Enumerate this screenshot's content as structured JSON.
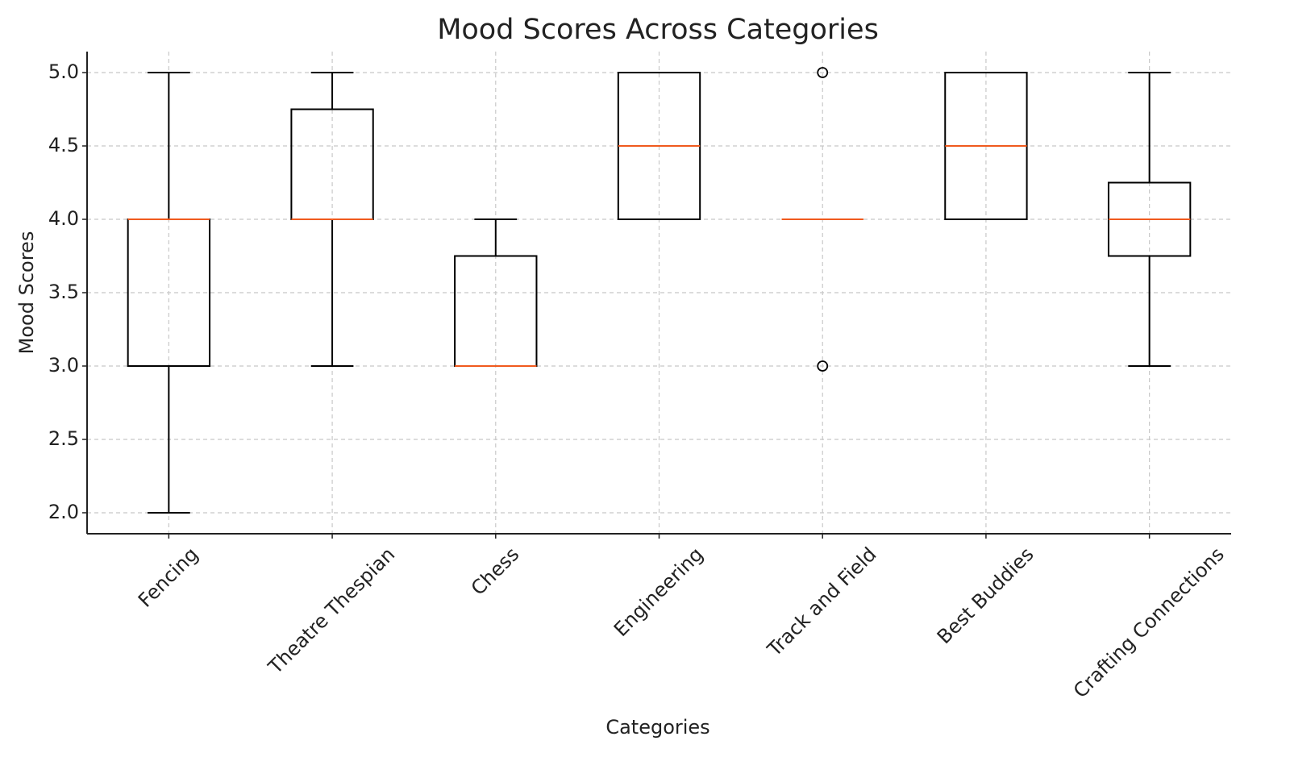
{
  "chart_data": {
    "type": "box",
    "title": "Mood Scores Across Categories",
    "x_label": "Categories",
    "y_label": "Mood Scores",
    "categories": [
      "Fencing",
      "Theatre Thespian",
      "Chess",
      "Engineering",
      "Track and Field",
      "Best Buddies",
      "Crafting Connections"
    ],
    "min": [
      2,
      3,
      3,
      4,
      4,
      4,
      3
    ],
    "q1": [
      3,
      4,
      3,
      4,
      4,
      4,
      3.75
    ],
    "median": [
      4,
      4,
      3,
      4.5,
      4,
      4.5,
      4
    ],
    "q3": [
      4,
      4.75,
      3.75,
      5,
      4,
      5,
      4.25
    ],
    "max": [
      5,
      5,
      4,
      5,
      4,
      5,
      5
    ],
    "outliers": [
      [],
      [],
      [],
      [],
      [
        5,
        3
      ],
      [],
      []
    ],
    "box_color": "#000000",
    "median_color": "#f05a1e",
    "ylim": [
      1.857,
      5.143
    ],
    "yticks": [
      {
        "value": 2,
        "label": "2.0"
      },
      {
        "value": 2.5,
        "label": "2.5"
      },
      {
        "value": 3,
        "label": "3.0"
      },
      {
        "value": 3.5,
        "label": "3.5"
      },
      {
        "value": 4,
        "label": "4.0"
      },
      {
        "value": 4.5,
        "label": "4.5"
      },
      {
        "value": 5,
        "label": "5.0"
      }
    ],
    "grid": true
  }
}
